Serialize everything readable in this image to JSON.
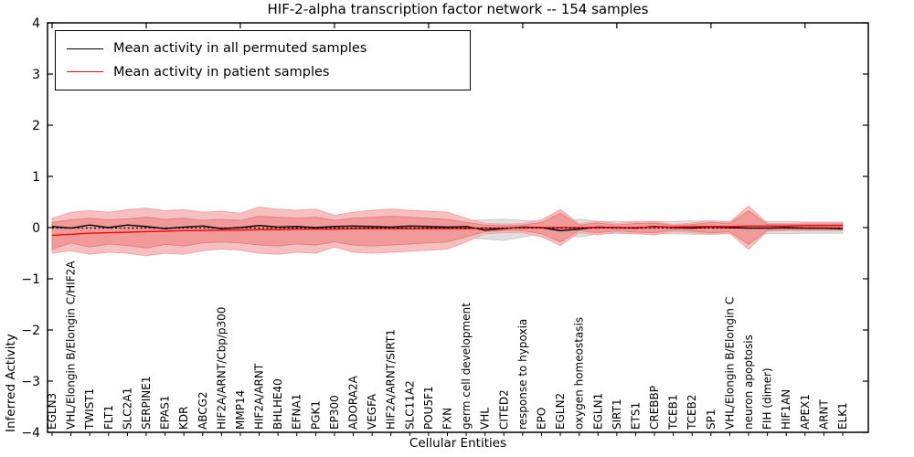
{
  "figure": {
    "background": "#ffffff",
    "axes_edge_color": "#000000"
  },
  "chart_data": {
    "type": "line",
    "title": "HIF-2-alpha transcription factor network -- 154 samples",
    "xlabel": "Cellular Entities",
    "ylabel": "Inferred Activity",
    "ylim": [
      -4,
      4
    ],
    "grid": false,
    "legend_position": "upper left",
    "ytick_values": [
      4,
      3,
      2,
      1,
      0,
      -1,
      -2,
      -3,
      -4
    ],
    "ytick_labels": [
      "4",
      "3",
      "2",
      "1",
      "0",
      "−1",
      "−2",
      "−3",
      "−4"
    ],
    "zero_line": {
      "style": "dotted",
      "color": "#000000",
      "y": 0
    },
    "categories": [
      "EGLN3",
      "VHL/Elongin B/Elongin C/HIF2A",
      "TWIST1",
      "FLT1",
      "SLC2A1",
      "SERPINE1",
      "EPAS1",
      "KDR",
      "ABCG2",
      "HIF2A/ARNT/Cbp/p300",
      "MMP14",
      "HIF2A/ARNT",
      "BHLHE40",
      "EFNA1",
      "PGK1",
      "EP300",
      "ADORA2A",
      "VEGFA",
      "HIF2A/ARNT/SIRT1",
      "SLC11A2",
      "POU5F1",
      "FXN",
      "germ cell development",
      "VHL",
      "CITED2",
      "response to hypoxia",
      "EPO",
      "EGLN2",
      "oxygen homeostasis",
      "EGLN1",
      "SIRT1",
      "ETS1",
      "CREBBP",
      "TCEB1",
      "TCEB2",
      "SP1",
      "VHL/Elongin B/Elongin C",
      "neuron apoptosis",
      "FIH (dimer)",
      "HIF1AN",
      "APEX1",
      "ARNT",
      "ELK1"
    ],
    "series": [
      {
        "name": "Mean activity in all permuted samples",
        "color": "#000000",
        "values": [
          0.02,
          -0.01,
          0.05,
          0.0,
          0.05,
          0.02,
          -0.02,
          0.01,
          0.03,
          -0.02,
          0.0,
          0.04,
          0.01,
          0.02,
          0.0,
          0.02,
          0.03,
          0.02,
          0.01,
          0.03,
          0.02,
          0.01,
          0.02,
          -0.05,
          -0.02,
          0.01,
          0.0,
          -0.06,
          -0.03,
          0.01,
          0.0,
          -0.01,
          0.02,
          0.0,
          -0.01,
          0.01,
          0.0,
          -0.01,
          -0.01,
          0.0,
          -0.01,
          -0.01,
          -0.02
        ]
      },
      {
        "name": "Mean activity in patient samples",
        "color": "#ff0000",
        "values": [
          -0.15,
          -0.13,
          -0.11,
          -0.1,
          -0.09,
          -0.08,
          -0.07,
          -0.06,
          -0.06,
          -0.05,
          -0.05,
          -0.04,
          -0.04,
          -0.03,
          -0.03,
          -0.03,
          -0.02,
          -0.02,
          -0.02,
          -0.02,
          -0.02,
          -0.02,
          -0.02,
          -0.01,
          -0.01,
          0.0,
          0.0,
          0.0,
          0.0,
          0.0,
          0.0,
          0.0,
          0.01,
          0.01,
          0.02,
          0.02,
          0.02,
          0.03,
          0.03,
          0.03,
          0.04,
          0.04,
          0.04
        ]
      }
    ],
    "bands": [
      {
        "name": "permuted-spread",
        "fill": "#dedede",
        "edge": "#c9c9c9",
        "upper": [
          0.12,
          0.12,
          0.12,
          0.12,
          0.12,
          0.12,
          0.12,
          0.12,
          0.12,
          0.12,
          0.12,
          0.12,
          0.12,
          0.12,
          0.12,
          0.12,
          0.12,
          0.12,
          0.12,
          0.12,
          0.12,
          0.13,
          0.14,
          0.15,
          0.16,
          0.14,
          0.12,
          0.12,
          0.16,
          0.12,
          0.12,
          0.12,
          0.12,
          0.12,
          0.13,
          0.13,
          0.12,
          0.13,
          0.12,
          0.12,
          0.11,
          0.11,
          0.11
        ],
        "lower": [
          -0.12,
          -0.12,
          -0.12,
          -0.12,
          -0.12,
          -0.12,
          -0.12,
          -0.12,
          -0.12,
          -0.12,
          -0.12,
          -0.12,
          -0.12,
          -0.12,
          -0.12,
          -0.12,
          -0.12,
          -0.12,
          -0.12,
          -0.12,
          -0.12,
          -0.13,
          -0.2,
          -0.22,
          -0.25,
          -0.18,
          -0.12,
          -0.12,
          -0.18,
          -0.12,
          -0.12,
          -0.12,
          -0.12,
          -0.12,
          -0.13,
          -0.13,
          -0.12,
          -0.13,
          -0.12,
          -0.12,
          -0.11,
          -0.11,
          -0.11
        ]
      },
      {
        "name": "patient-outer-spread",
        "fill": "#f7bcbc",
        "edge": "#f2a6a6",
        "upper": [
          0.18,
          0.3,
          0.33,
          0.3,
          0.35,
          0.38,
          0.33,
          0.35,
          0.3,
          0.32,
          0.28,
          0.4,
          0.36,
          0.34,
          0.36,
          0.24,
          0.3,
          0.34,
          0.36,
          0.34,
          0.32,
          0.3,
          0.18,
          0.08,
          0.07,
          0.08,
          0.15,
          0.35,
          0.08,
          0.12,
          0.08,
          0.11,
          0.12,
          0.06,
          0.09,
          0.13,
          0.11,
          0.42,
          0.08,
          0.08,
          0.09,
          0.09,
          0.09
        ],
        "lower": [
          -0.5,
          -0.45,
          -0.52,
          -0.48,
          -0.5,
          -0.55,
          -0.5,
          -0.52,
          -0.45,
          -0.42,
          -0.44,
          -0.5,
          -0.52,
          -0.48,
          -0.5,
          -0.38,
          -0.48,
          -0.5,
          -0.48,
          -0.46,
          -0.44,
          -0.42,
          -0.28,
          -0.12,
          -0.1,
          -0.1,
          -0.18,
          -0.35,
          -0.1,
          -0.14,
          -0.09,
          -0.12,
          -0.14,
          -0.08,
          -0.1,
          -0.13,
          -0.11,
          -0.42,
          -0.07,
          -0.06,
          -0.06,
          -0.06,
          -0.06
        ]
      },
      {
        "name": "patient-inner-spread",
        "fill": "#ef9898",
        "edge": "#e87f7f",
        "upper": [
          0.1,
          0.15,
          0.18,
          0.15,
          0.17,
          0.2,
          0.16,
          0.18,
          0.14,
          0.16,
          0.14,
          0.22,
          0.2,
          0.18,
          0.2,
          0.14,
          0.18,
          0.2,
          0.22,
          0.2,
          0.18,
          0.16,
          0.1,
          0.05,
          0.04,
          0.05,
          0.1,
          0.28,
          0.05,
          0.09,
          0.05,
          0.08,
          0.09,
          0.04,
          0.06,
          0.1,
          0.08,
          0.33,
          0.06,
          0.06,
          0.07,
          0.07,
          0.07
        ],
        "lower": [
          -0.42,
          -0.3,
          -0.38,
          -0.32,
          -0.35,
          -0.4,
          -0.33,
          -0.36,
          -0.3,
          -0.28,
          -0.3,
          -0.34,
          -0.36,
          -0.32,
          -0.34,
          -0.28,
          -0.34,
          -0.36,
          -0.34,
          -0.32,
          -0.3,
          -0.28,
          -0.18,
          -0.08,
          -0.06,
          -0.06,
          -0.12,
          -0.28,
          -0.06,
          -0.1,
          -0.06,
          -0.09,
          -0.1,
          -0.05,
          -0.07,
          -0.1,
          -0.08,
          -0.33,
          -0.05,
          -0.04,
          -0.04,
          -0.04,
          -0.04
        ]
      }
    ]
  }
}
